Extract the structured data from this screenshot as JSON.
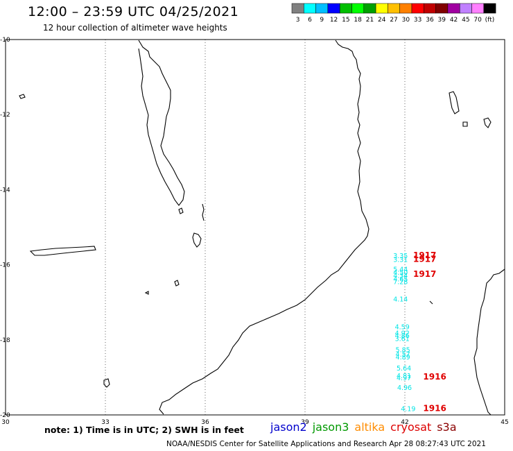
{
  "title": "12:00 – 23:59 UTC 04/25/2021",
  "subtitle": "12 hour collection of altimeter wave heights",
  "legend": {
    "colors": [
      "#808080",
      "#00ffff",
      "#00bfff",
      "#0000ff",
      "#00bf00",
      "#00ff00",
      "#00a000",
      "#ffff00",
      "#ffc000",
      "#ff8000",
      "#ff0000",
      "#c00000",
      "#800000",
      "#a000a0",
      "#c080ff",
      "#ff80ff",
      "#000000"
    ],
    "labels": [
      "3",
      "6",
      "9",
      "12",
      "15",
      "18",
      "21",
      "24",
      "27",
      "30",
      "33",
      "36",
      "39",
      "42",
      "45",
      "70",
      "(ft)"
    ]
  },
  "axes": {
    "lat_labels": [
      "-10",
      "-12",
      "-14",
      "-16",
      "-18",
      "-20"
    ],
    "lon_labels": [
      "30",
      "33",
      "36",
      "39",
      "42",
      "45"
    ]
  },
  "observations": {
    "color": "#00e5e5",
    "values": [
      {
        "text": "3.35",
        "lon": 41.65,
        "lat": -15.82
      },
      {
        "text": "3.31",
        "lon": 41.65,
        "lat": -15.92
      },
      {
        "text": "5.44",
        "lon": 41.65,
        "lat": -16.18
      },
      {
        "text": "4.50",
        "lon": 41.65,
        "lat": -16.27
      },
      {
        "text": "4.34",
        "lon": 41.65,
        "lat": -16.35
      },
      {
        "text": "4.65",
        "lon": 41.65,
        "lat": -16.44
      },
      {
        "text": "7.28",
        "lon": 41.65,
        "lat": -16.52
      },
      {
        "text": "4.14",
        "lon": 41.65,
        "lat": -16.98
      },
      {
        "text": "4.59",
        "lon": 41.7,
        "lat": -17.72
      },
      {
        "text": "4.92",
        "lon": 41.7,
        "lat": -17.88
      },
      {
        "text": "4.86",
        "lon": 41.7,
        "lat": -17.95
      },
      {
        "text": "3.61",
        "lon": 41.7,
        "lat": -18.03
      },
      {
        "text": "5.85",
        "lon": 41.72,
        "lat": -18.33
      },
      {
        "text": "4.57",
        "lon": 41.72,
        "lat": -18.45
      },
      {
        "text": "4.89",
        "lon": 41.72,
        "lat": -18.52
      },
      {
        "text": "5.64",
        "lon": 41.75,
        "lat": -18.82
      },
      {
        "text": "4.81",
        "lon": 41.75,
        "lat": -19.02
      },
      {
        "text": "4.97",
        "lon": 41.75,
        "lat": -19.08
      },
      {
        "text": "4.96",
        "lon": 41.77,
        "lat": -19.33
      },
      {
        "text": "4.19",
        "lon": 41.88,
        "lat": -19.9
      }
    ]
  },
  "passes": [
    {
      "text": "1917",
      "lon": 42.25,
      "lat": -15.82,
      "color": "#e00000"
    },
    {
      "text": "1917",
      "lon": 42.25,
      "lat": -15.92,
      "color": "#e00000"
    },
    {
      "text": "1917",
      "lon": 42.25,
      "lat": -16.32,
      "color": "#e00000"
    },
    {
      "text": "1916",
      "lon": 42.55,
      "lat": -19.06,
      "color": "#e00000"
    },
    {
      "text": "1916",
      "lon": 42.55,
      "lat": -19.9,
      "color": "#e00000"
    }
  ],
  "note": "note:  1) Time is in UTC;  2) SWH is in feet",
  "satellites": [
    {
      "name": "jason2",
      "color": "#0000cc"
    },
    {
      "name": "jason3",
      "color": "#009900"
    },
    {
      "name": "altika",
      "color": "#ff8c00"
    },
    {
      "name": "cryosat",
      "color": "#dd0000"
    },
    {
      "name": "s3a",
      "color": "#8b0000"
    }
  ],
  "credit": "NOAA/NESDIS Center for Satellite Applications and Research    Apr 28 08:27:43 UTC 2021"
}
